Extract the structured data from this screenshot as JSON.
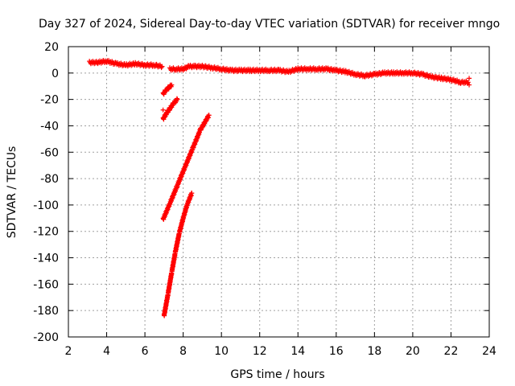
{
  "chart_data": {
    "type": "scatter",
    "title": "Day 327 of 2024, Sidereal Day-to-day VTEC variation (SDTVAR) for receiver mngo",
    "xlabel": "GPS time / hours",
    "ylabel": "SDTVAR / TECUs",
    "xlim": [
      2,
      24
    ],
    "ylim": [
      -200,
      20
    ],
    "xticks": [
      2,
      4,
      6,
      8,
      10,
      12,
      14,
      16,
      18,
      20,
      22,
      24
    ],
    "yticks": [
      20,
      0,
      -20,
      -40,
      -60,
      -80,
      -100,
      -120,
      -140,
      -160,
      -180,
      -200
    ],
    "grid": true,
    "marker": "+",
    "series": [
      {
        "name": "sdtvar",
        "color": "#ff0000",
        "segments": [
          {
            "x": [
              3.1,
              3.5,
              4.0,
              4.5,
              5.0,
              5.5,
              6.0,
              6.5,
              6.9
            ],
            "y": [
              8,
              8,
              9,
              7,
              6,
              7,
              6,
              6,
              5
            ]
          },
          {
            "x": [
              7.3,
              7.6,
              8.0,
              8.3,
              8.6,
              9.0,
              9.5,
              10.0,
              10.5,
              11.0,
              11.5,
              12.0,
              12.5,
              13.0,
              13.5,
              14.0,
              14.5,
              15.0,
              15.5,
              16.0,
              16.5,
              17.0,
              17.5,
              18.0,
              18.5,
              19.0,
              19.5,
              20.0,
              20.5,
              21.0,
              21.5,
              22.0,
              22.5,
              22.9
            ],
            "y": [
              3,
              3,
              3,
              5,
              5,
              5,
              4,
              3,
              2,
              2,
              2,
              2,
              2,
              2,
              1,
              3,
              3,
              3,
              3,
              2,
              1,
              -1,
              -2,
              -1,
              0,
              0,
              0,
              0,
              -1,
              -3,
              -4,
              -5,
              -7,
              -7
            ]
          },
          {
            "x": [
              6.95,
              7.1,
              7.25,
              7.4
            ],
            "y": [
              -16,
              -13,
              -11,
              -9
            ]
          },
          {
            "x": [
              6.95,
              7.1,
              7.3,
              7.5,
              7.7
            ],
            "y": [
              -35,
              -31,
              -27,
              -23,
              -20
            ]
          },
          {
            "x": [
              6.95,
              7.3,
              7.7,
              8.1,
              8.5,
              8.9,
              9.35
            ],
            "y": [
              -111,
              -99,
              -85,
              -71,
              -57,
              -43,
              -32
            ]
          },
          {
            "x": [
              7.0,
              7.2,
              7.4,
              7.6,
              7.8,
              8.0,
              8.2,
              8.45
            ],
            "y": [
              -184,
              -168,
              -151,
              -135,
              -121,
              -110,
              -100,
              -91
            ]
          }
        ],
        "outliers": [
          {
            "x": 6.95,
            "y": -28
          },
          {
            "x": 22.95,
            "y": -4
          },
          {
            "x": 22.95,
            "y": -9
          }
        ]
      }
    ]
  }
}
